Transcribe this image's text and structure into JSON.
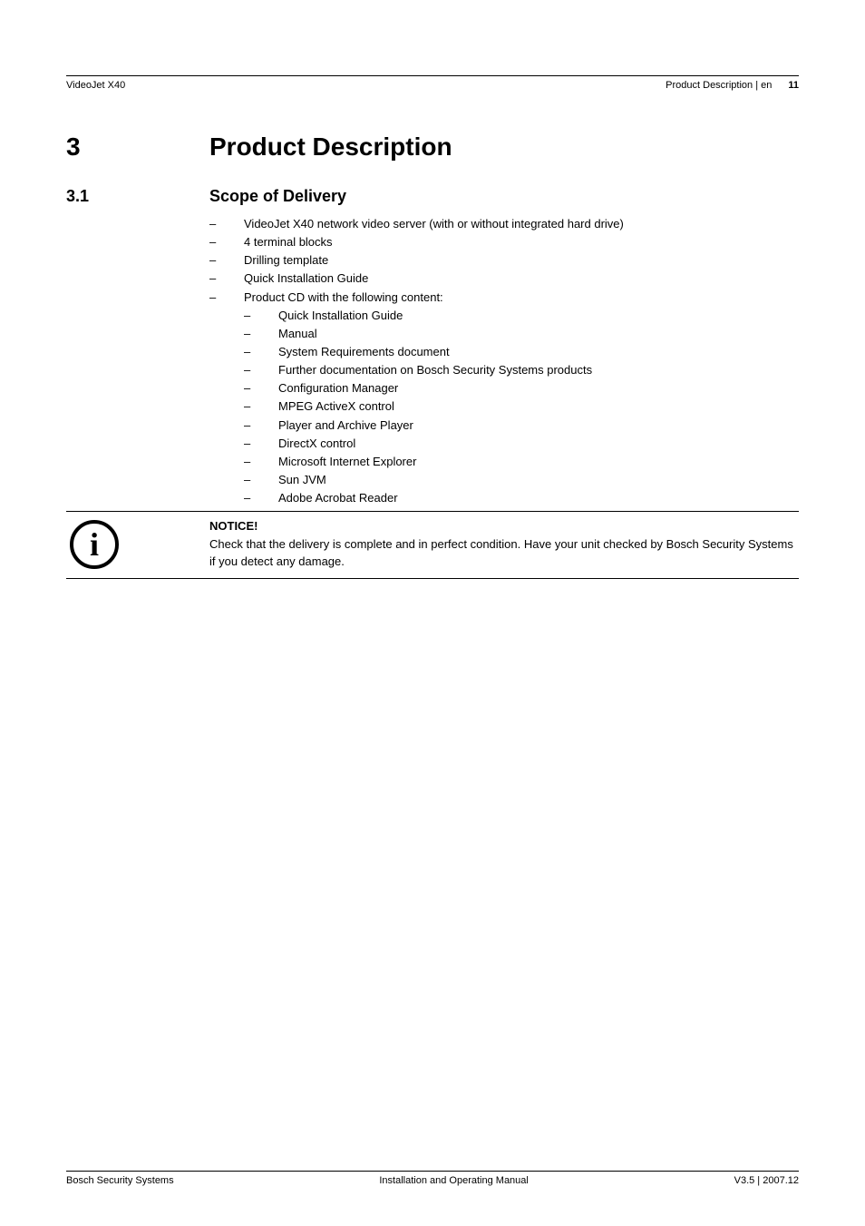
{
  "colors": {
    "text": "#000000",
    "background": "#ffffff",
    "rule": "#000000"
  },
  "typography": {
    "body_family": "Arial, Helvetica, sans-serif",
    "h1_size_pt": 21,
    "h2_size_pt": 13.5,
    "body_size_pt": 10,
    "header_footer_size_pt": 8
  },
  "header": {
    "left": "VideoJet X40",
    "right_section": "Product Description | en",
    "page_number": "11"
  },
  "section": {
    "number": "3",
    "title": "Product Description"
  },
  "subsection": {
    "number": "3.1",
    "title": "Scope of Delivery",
    "items": [
      "VideoJet X40 network video server (with or without integrated hard drive)",
      "4 terminal blocks",
      "Drilling template",
      "Quick Installation Guide",
      "Product CD with the following content:"
    ],
    "cd_contents": [
      "Quick Installation Guide",
      "Manual",
      "System Requirements document",
      "Further documentation on Bosch Security Systems products",
      "Configuration Manager",
      "MPEG ActiveX control",
      "Player and Archive Player",
      "DirectX control",
      "Microsoft Internet Explorer",
      "Sun JVM",
      "Adobe Acrobat Reader"
    ]
  },
  "notice": {
    "icon_glyph": "i",
    "title": "NOTICE!",
    "body": "Check that the delivery is complete and in perfect condition. Have your unit checked by Bosch Security Systems if you detect any damage."
  },
  "footer": {
    "left": "Bosch Security Systems",
    "center": "Installation and Operating Manual",
    "right": "V3.5 | 2007.12"
  }
}
